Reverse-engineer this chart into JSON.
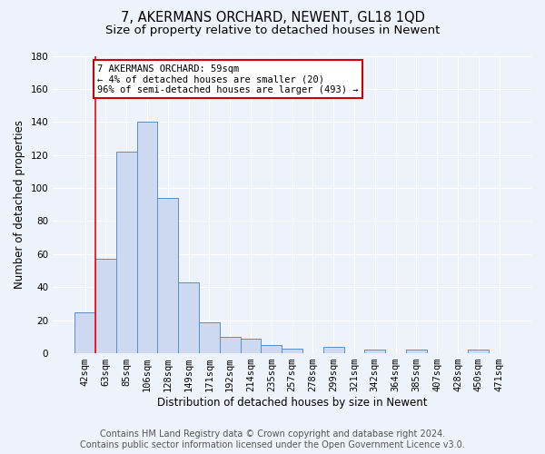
{
  "title": "7, AKERMANS ORCHARD, NEWENT, GL18 1QD",
  "subtitle": "Size of property relative to detached houses in Newent",
  "xlabel": "Distribution of detached houses by size in Newent",
  "ylabel": "Number of detached properties",
  "bar_labels": [
    "42sqm",
    "63sqm",
    "85sqm",
    "106sqm",
    "128sqm",
    "149sqm",
    "171sqm",
    "192sqm",
    "214sqm",
    "235sqm",
    "257sqm",
    "278sqm",
    "299sqm",
    "321sqm",
    "342sqm",
    "364sqm",
    "385sqm",
    "407sqm",
    "428sqm",
    "450sqm",
    "471sqm"
  ],
  "bar_values": [
    25,
    57,
    122,
    140,
    94,
    43,
    19,
    10,
    9,
    5,
    3,
    0,
    4,
    0,
    2,
    0,
    2,
    0,
    0,
    2,
    0
  ],
  "bar_color": "#ccd9f0",
  "bar_edge_color": "#5b8ec4",
  "ylim": [
    0,
    180
  ],
  "yticks": [
    0,
    20,
    40,
    60,
    80,
    100,
    120,
    140,
    160,
    180
  ],
  "red_line_x": 0.5,
  "annotation_line1": "7 AKERMANS ORCHARD: 59sqm",
  "annotation_line2": "← 4% of detached houses are smaller (20)",
  "annotation_line3": "96% of semi-detached houses are larger (493) →",
  "annotation_box_color": "#ffffff",
  "annotation_box_edge": "#cc0000",
  "footer_line1": "Contains HM Land Registry data © Crown copyright and database right 2024.",
  "footer_line2": "Contains public sector information licensed under the Open Government Licence v3.0.",
  "background_color": "#eef2fb",
  "grid_color": "#ffffff",
  "title_fontsize": 10.5,
  "subtitle_fontsize": 9.5,
  "axis_label_fontsize": 8.5,
  "tick_fontsize": 7.5,
  "footer_fontsize": 7
}
